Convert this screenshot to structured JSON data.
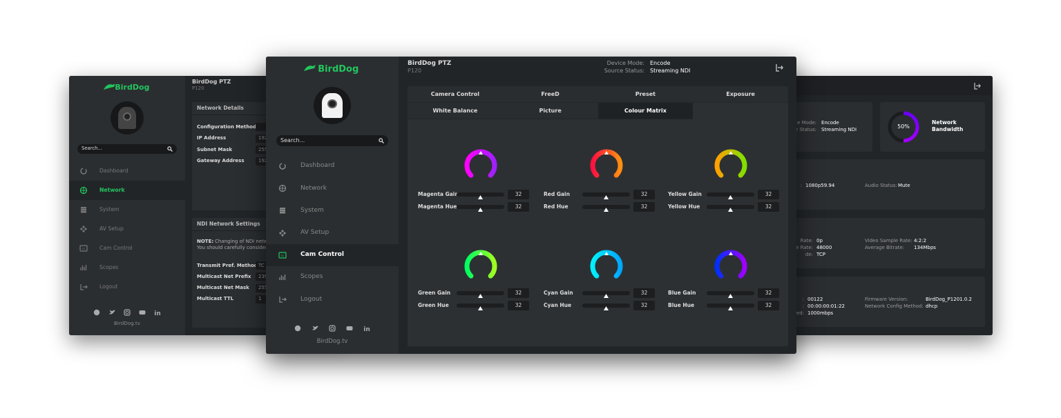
{
  "left_window": {
    "logo": "BirdDog",
    "search": "Search...",
    "nav": [
      "Dashboard",
      "Network",
      "System",
      "AV Setup",
      "Cam Control",
      "Scopes",
      "Logout"
    ],
    "footer": "BirdDog.tv",
    "header": {
      "title": "BirdDog PTZ",
      "model": "P120"
    },
    "network_details": {
      "title": "Network Details",
      "rows": [
        {
          "label": "Configuration Method"
        },
        {
          "label": "IP Address",
          "value": "192"
        },
        {
          "label": "Subnet Mask",
          "value": "255"
        },
        {
          "label": "Gateway Address",
          "value": "192"
        }
      ]
    },
    "ndi_settings": {
      "title": "NDI Network Settings",
      "note_label": "NOTE:",
      "note_lines": [
        "Changing of NDI netw",
        "You should carefully consider"
      ],
      "rows": [
        {
          "label": "Transmit Pref. Method",
          "value": "TC"
        },
        {
          "label": "Multicast Net Prefix",
          "value": "239"
        },
        {
          "label": "Multicast Net Mask",
          "value": "255"
        },
        {
          "label": "Multicast TTL",
          "value": "1"
        }
      ]
    }
  },
  "center_window": {
    "logo": "BirdDog",
    "search": "Search...",
    "nav": [
      "Dashboard",
      "Network",
      "System",
      "AV Setup",
      "Cam Control",
      "Scopes",
      "Logout"
    ],
    "footer": "BirdDog.tv",
    "header": {
      "title": "BirdDog PTZ",
      "model": "P120",
      "status": [
        {
          "label": "Device Mode:",
          "value": "Encode"
        },
        {
          "label": "Source Status:",
          "value": "Streaming NDI"
        }
      ]
    },
    "tabs": [
      "Camera Control",
      "FreeD",
      "Preset",
      "Exposure",
      "White Balance",
      "Picture",
      "Colour Matrix"
    ],
    "colours": [
      {
        "gain_label": "Magenta Gain",
        "gain": 32,
        "hue_label": "Magenta Hue",
        "hue": 32
      },
      {
        "gain_label": "Red Gain",
        "gain": 32,
        "hue_label": "Red Hue",
        "hue": 32
      },
      {
        "gain_label": "Yellow Gain",
        "gain": 32,
        "hue_label": "Yellow Hue",
        "hue": 32
      },
      {
        "gain_label": "Green Gain",
        "gain": 32,
        "hue_label": "Green Hue",
        "hue": 32
      },
      {
        "gain_label": "Cyan Gain",
        "gain": 32,
        "hue_label": "Cyan Hue",
        "hue": 32
      },
      {
        "gain_label": "Blue Gain",
        "gain": 32,
        "hue_label": "Blue Hue",
        "hue": 32
      }
    ]
  },
  "right_window": {
    "status": [
      {
        "label": "e Mode:",
        "value": "Encode"
      },
      {
        "label": "e Status:",
        "value": "Streaming NDI"
      }
    ],
    "bandwidth": {
      "value": "50%",
      "label": "Network Bandwidth"
    },
    "panels": [
      [
        [
          {
            "label": ":",
            "value": "1080p59.94"
          },
          {
            "label": "Audio Status:",
            "value": "Mute"
          }
        ]
      ],
      [
        [
          {
            "label": "Rate:",
            "value": "0p"
          },
          {
            "label": "Video Sample Rate:",
            "value": "4:2:2"
          }
        ],
        [
          {
            "label": "e Rate:",
            "value": "48000"
          },
          {
            "label": "Average Bitrate:",
            "value": "134Mbps"
          }
        ],
        [
          {
            "label": "de:",
            "value": "TCP"
          }
        ]
      ],
      [
        [
          {
            "label": ":",
            "value": "00122"
          },
          {
            "label": "Firmware Version:",
            "value": "BirdDog_P1201.0.2"
          }
        ],
        [
          {
            "label": ":",
            "value": "00:00:00:01:22"
          },
          {
            "label": "Network Config Method:",
            "value": "dhcp"
          }
        ],
        [
          {
            "label": "ed:",
            "value": "1000mbps"
          }
        ]
      ]
    ]
  }
}
